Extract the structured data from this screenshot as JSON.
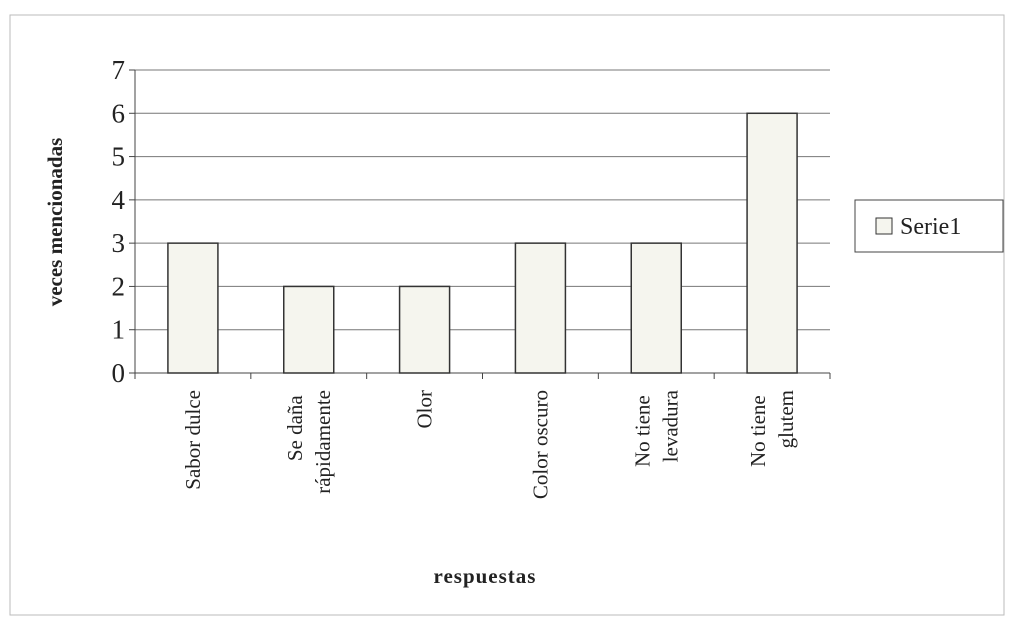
{
  "chart_data": {
    "type": "bar",
    "categories": [
      "Sabor dulce",
      "Se daña rápidamente",
      "Olor",
      "Color oscuro",
      "No tiene levadura",
      "No tiene glutem"
    ],
    "series": [
      {
        "name": "Serie1",
        "color": "#f5f5ee",
        "values": [
          3,
          2,
          2,
          3,
          3,
          6
        ]
      }
    ],
    "xlabel": "respuestas",
    "ylabel": "veces mencionadas",
    "ylim": [
      0,
      7
    ],
    "yticks": [
      0,
      1,
      2,
      3,
      4,
      5,
      6,
      7
    ],
    "grid": true,
    "legend": "right"
  }
}
